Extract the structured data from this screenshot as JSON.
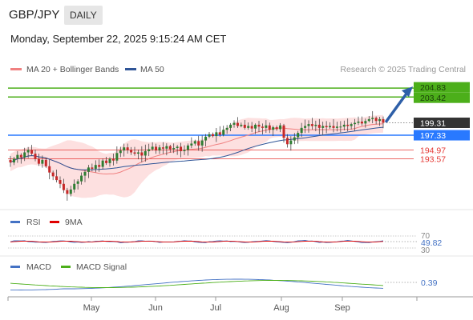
{
  "header": {
    "symbol": "GBP/JPY",
    "timeframe": "DAILY",
    "datetime": "Monday, September 22, 2025 9:15:24 AM CET"
  },
  "legend": {
    "ma20_bb": {
      "label": "MA 20 + Bollinger Bands",
      "color": "#f08080"
    },
    "ma50": {
      "label": "MA 50",
      "color": "#2f5597"
    },
    "credit": "Research © 2025 Trading Central"
  },
  "chart_data": [
    {
      "type": "candlestick",
      "panel": "price",
      "x_labels": [
        "May",
        "Jun",
        "Jul",
        "Aug",
        "Sep"
      ],
      "ylim": [
        185.5,
        206.5
      ],
      "levels": [
        {
          "value": 204.83,
          "label": "204.83",
          "color": "#4caf1a",
          "kind": "target"
        },
        {
          "value": 203.42,
          "label": "203.42",
          "color": "#4caf1a",
          "kind": "target"
        },
        {
          "value": 199.31,
          "label": "199.31",
          "color": "#333333",
          "kind": "last"
        },
        {
          "value": 197.33,
          "label": "197.33",
          "color": "#2979ff",
          "kind": "pivot"
        },
        {
          "value": 194.97,
          "label": "194.97",
          "color": "#e53935",
          "kind": "support"
        },
        {
          "value": 193.57,
          "label": "193.57",
          "color": "#e53935",
          "kind": "support"
        }
      ],
      "closes": [
        193.0,
        193.6,
        194.2,
        193.8,
        194.6,
        195.0,
        194.4,
        193.6,
        192.8,
        193.4,
        192.4,
        191.4,
        190.8,
        190.2,
        189.6,
        188.6,
        188.0,
        188.7,
        189.6,
        190.0,
        190.9,
        191.5,
        192.2,
        192.0,
        192.6,
        192.3,
        193.3,
        192.9,
        193.6,
        193.3,
        194.5,
        194.9,
        195.4,
        195.0,
        194.6,
        194.4,
        194.6,
        194.1,
        194.8,
        195.1,
        195.5,
        194.9,
        195.4,
        195.2,
        195.6,
        195.1,
        195.3,
        195.5,
        194.8,
        195.0,
        195.7,
        196.0,
        196.4,
        195.7,
        196.5,
        197.1,
        197.5,
        197.2,
        197.8,
        197.4,
        198.2,
        198.5,
        199.0,
        199.3,
        198.8,
        199.0,
        198.5,
        198.8,
        198.4,
        199.0,
        198.7,
        198.5,
        198.9,
        198.2,
        198.6,
        198.3,
        198.9,
        196.9,
        195.9,
        196.5,
        197.0,
        197.7,
        198.5,
        198.8,
        199.1,
        198.8,
        199.0,
        198.5,
        198.8,
        198.6,
        198.8,
        198.5,
        198.7,
        198.7,
        199.0,
        198.8,
        199.1,
        199.3,
        199.5,
        199.2,
        199.6,
        199.9,
        200.1,
        199.6,
        199.9,
        199.31
      ],
      "ma20": [],
      "ma50": []
    },
    {
      "type": "line",
      "panel": "rsi",
      "series": [
        {
          "name": "RSI",
          "color": "#4472c4"
        },
        {
          "name": "9MA",
          "color": "#e00000"
        }
      ],
      "levels": [
        70,
        30
      ],
      "last_value": "49.82",
      "ylim": [
        0,
        100
      ]
    },
    {
      "type": "line",
      "panel": "macd",
      "series": [
        {
          "name": "MACD",
          "color": "#4472c4"
        },
        {
          "name": "MACD Signal",
          "color": "#4caf1a"
        }
      ],
      "last_value": "0.39"
    }
  ],
  "rsi_panel": {
    "legend": [
      {
        "label": "RSI",
        "color": "#4472c4"
      },
      {
        "label": "9MA",
        "color": "#e00000"
      }
    ],
    "level_labels": [
      "70",
      "30"
    ],
    "last_value": "49.82"
  },
  "macd_panel": {
    "legend": [
      {
        "label": "MACD",
        "color": "#4472c4"
      },
      {
        "label": "MACD Signal",
        "color": "#4caf1a"
      }
    ],
    "last_value": "0.39"
  },
  "colors": {
    "up_candle": "#2e7d32",
    "down_candle": "#c62828",
    "band_fill": "#fde0e0",
    "target": "#4caf1a",
    "pivot": "#2979ff",
    "support": "#e53935",
    "arrow": "#2e5fa8"
  }
}
